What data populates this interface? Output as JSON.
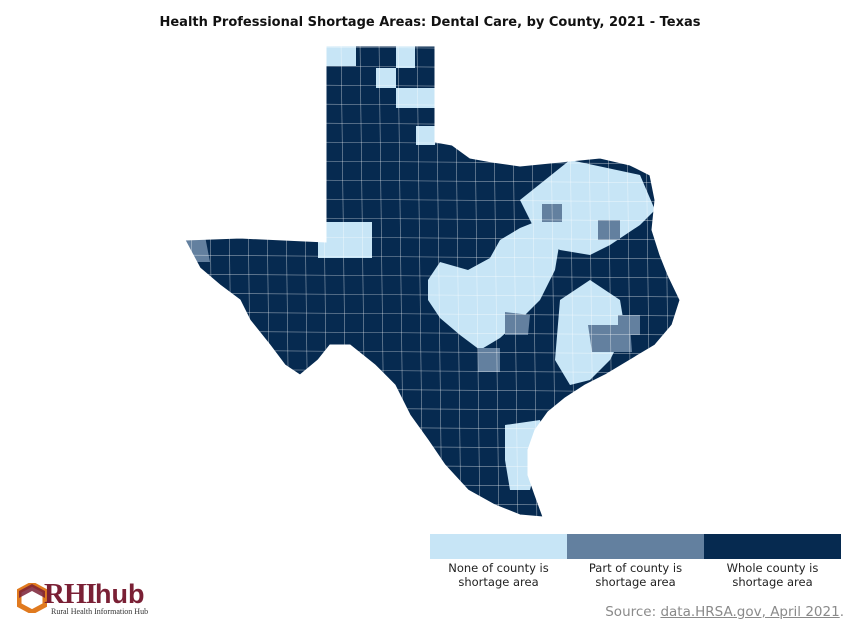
{
  "title": "Health Professional Shortage Areas: Dental Care, by County, 2021 - Texas",
  "colors": {
    "none": "#c7e5f6",
    "part": "#63809f",
    "whole": "#062a50",
    "border": "#ffffff"
  },
  "legend": [
    {
      "key": "none",
      "label_line1": "None of county is",
      "label_line2": "shortage area"
    },
    {
      "key": "part",
      "label_line1": "Part of county is",
      "label_line2": "shortage area"
    },
    {
      "key": "whole",
      "label_line1": "Whole county is",
      "label_line2": "shortage area"
    }
  ],
  "source": {
    "prefix": "Source: ",
    "link_text": "data.HRSA.gov, April 2021",
    "suffix": "."
  },
  "logo": {
    "brand_a": "RHI",
    "brand_b": "hub",
    "subtitle": "Rural Health Information Hub"
  }
}
